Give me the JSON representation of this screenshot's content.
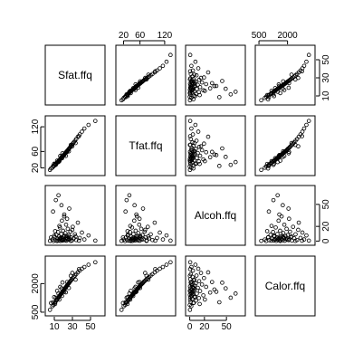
{
  "chart_data": {
    "type": "scatter",
    "variables": [
      {
        "name": "Sfat.ffq",
        "range": [
          3,
          63
        ],
        "ticks": [
          10,
          30,
          50
        ]
      },
      {
        "name": "Tfat.ffq",
        "range": [
          8,
          140
        ],
        "ticks": [
          20,
          60,
          120
        ]
      },
      {
        "name": "Alcoh.ffq",
        "range": [
          -2,
          72
        ],
        "ticks": [
          0,
          20,
          50
        ]
      },
      {
        "name": "Calor.ffq",
        "range": [
          450,
          3300
        ],
        "ticks": [
          500,
          2000
        ]
      }
    ],
    "outer_tick_labels": {
      "top": [
        {
          "panel": 1,
          "labels": [
            "20",
            "60",
            "120"
          ]
        },
        {
          "panel": 3,
          "labels": [
            "500",
            "2000"
          ]
        }
      ],
      "bottom": [
        {
          "panel": 0,
          "labels": [
            "10",
            "30",
            "50"
          ]
        },
        {
          "panel": 2,
          "labels": [
            "0",
            "20",
            "50"
          ]
        }
      ],
      "left": [
        {
          "panel": 1,
          "labels": [
            "20",
            "60",
            "120"
          ]
        },
        {
          "panel": 3,
          "labels": [
            "500",
            "2000"
          ]
        }
      ],
      "right": [
        {
          "panel": 0,
          "labels": [
            "10",
            "30",
            "50"
          ]
        },
        {
          "panel": 2,
          "labels": [
            "0",
            "20",
            "50"
          ]
        }
      ]
    },
    "grid": false,
    "legend": "none",
    "observations": [
      [
        5.2,
        15.1,
        0.3,
        620
      ],
      [
        7.8,
        20.4,
        2.1,
        810
      ],
      [
        9.1,
        23.8,
        0.0,
        880
      ],
      [
        10.4,
        26.2,
        5.4,
        990
      ],
      [
        11.2,
        28.9,
        1.2,
        1040
      ],
      [
        12.1,
        30.3,
        8.7,
        1110
      ],
      [
        12.8,
        32.6,
        0.5,
        1150
      ],
      [
        13.5,
        33.4,
        3.3,
        1190
      ],
      [
        14.2,
        35.8,
        12.4,
        1240
      ],
      [
        14.9,
        37.1,
        0.9,
        1280
      ],
      [
        15.3,
        38.4,
        6.2,
        1320
      ],
      [
        15.8,
        39.2,
        2.8,
        1350
      ],
      [
        16.2,
        40.7,
        18.5,
        1380
      ],
      [
        16.7,
        41.9,
        0.2,
        1410
      ],
      [
        17.1,
        42.8,
        4.4,
        1440
      ],
      [
        17.6,
        44.1,
        9.6,
        1470
      ],
      [
        18.0,
        45.3,
        1.6,
        1500
      ],
      [
        18.4,
        46.0,
        27.8,
        1530
      ],
      [
        18.9,
        47.5,
        3.9,
        1550
      ],
      [
        19.3,
        48.2,
        0.7,
        1580
      ],
      [
        19.7,
        49.6,
        14.1,
        1610
      ],
      [
        20.1,
        50.4,
        5.8,
        1640
      ],
      [
        20.5,
        51.8,
        2.4,
        1660
      ],
      [
        20.9,
        52.5,
        33.6,
        1690
      ],
      [
        21.3,
        53.9,
        7.2,
        1720
      ],
      [
        21.8,
        54.7,
        1.1,
        1750
      ],
      [
        22.2,
        56.0,
        10.9,
        1780
      ],
      [
        22.6,
        57.3,
        4.7,
        1800
      ],
      [
        23.0,
        58.1,
        22.3,
        1830
      ],
      [
        23.5,
        59.4,
        0.4,
        1860
      ],
      [
        23.9,
        60.8,
        6.9,
        1890
      ],
      [
        24.4,
        61.6,
        3.1,
        1920
      ],
      [
        24.9,
        63.0,
        16.7,
        1950
      ],
      [
        25.4,
        64.5,
        1.9,
        1980
      ],
      [
        25.9,
        66.1,
        8.3,
        2010
      ],
      [
        26.5,
        67.4,
        44.2,
        2050
      ],
      [
        27.1,
        69.0,
        2.6,
        2090
      ],
      [
        27.8,
        71.2,
        12.8,
        2130
      ],
      [
        28.6,
        73.5,
        5.1,
        2180
      ],
      [
        29.5,
        76.3,
        0.8,
        2230
      ],
      [
        30.4,
        79.0,
        19.4,
        2290
      ],
      [
        31.5,
        82.2,
        3.7,
        2350
      ],
      [
        32.8,
        86.1,
        9.2,
        2420
      ],
      [
        34.2,
        90.3,
        1.4,
        2500
      ],
      [
        36.0,
        95.8,
        25.1,
        2590
      ],
      [
        38.1,
        101.4,
        4.3,
        2680
      ],
      [
        40.5,
        108.2,
        11.6,
        2780
      ],
      [
        43.2,
        115.7,
        2.2,
        2870
      ],
      [
        47.8,
        124.5,
        7.7,
        2990
      ],
      [
        55.3,
        134.2,
        0.6,
        3120
      ],
      [
        8.6,
        24.9,
        40.3,
        1020
      ],
      [
        11.7,
        27.5,
        55.8,
        1260
      ],
      [
        14.6,
        34.2,
        62.4,
        1480
      ],
      [
        17.9,
        46.8,
        48.9,
        1750
      ],
      [
        21.0,
        51.2,
        36.2,
        1570
      ],
      [
        6.3,
        18.7,
        4.9,
        980
      ],
      [
        9.8,
        30.1,
        7.3,
        1290
      ],
      [
        13.1,
        37.6,
        0.1,
        1620
      ],
      [
        16.5,
        49.0,
        3.6,
        1830
      ],
      [
        19.0,
        55.5,
        1.3,
        2060
      ],
      [
        22.8,
        49.2,
        2.7,
        1540
      ],
      [
        26.1,
        60.3,
        5.6,
        1770
      ],
      [
        28.2,
        75.8,
        0.2,
        2410
      ],
      [
        33.5,
        80.4,
        6.4,
        2210
      ],
      [
        37.2,
        97.1,
        0.5,
        2760
      ],
      [
        10.9,
        29.7,
        13.5,
        930
      ],
      [
        15.6,
        36.4,
        20.6,
        1160
      ],
      [
        18.6,
        43.5,
        2.0,
        1350
      ],
      [
        24.1,
        58.9,
        30.4,
        2080
      ],
      [
        29.9,
        72.6,
        15.3,
        2560
      ]
    ]
  }
}
